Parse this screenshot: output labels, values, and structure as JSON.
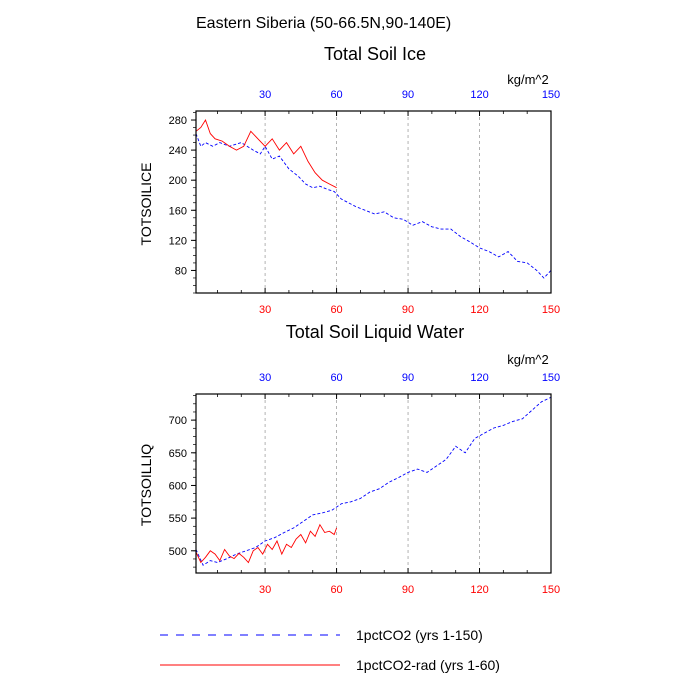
{
  "figure_title": "Eastern Siberia (50-66.5N,90-140E)",
  "colors": {
    "series_1": "#0000ff",
    "series_2": "#ff0000",
    "grid": "#a0a0a0",
    "frame": "#000000"
  },
  "legend": {
    "items": [
      {
        "label": "1pctCO2 (yrs 1-150)",
        "color": "#0000ff",
        "style": "dashed"
      },
      {
        "label": "1pctCO2-rad (yrs 1-60)",
        "color": "#ff0000",
        "style": "solid"
      }
    ]
  },
  "chart_data": [
    {
      "type": "line",
      "title": "Total Soil Ice",
      "ylabel": "TOTSOILICE",
      "units": "kg/m^2",
      "xlim": [
        1,
        150
      ],
      "ylim": [
        50,
        292
      ],
      "xticks": [
        30,
        60,
        90,
        120,
        150
      ],
      "yticks": [
        80,
        120,
        160,
        200,
        240,
        280
      ],
      "grid_x": true,
      "series": [
        {
          "name": "1pctCO2 (yrs 1-150)",
          "style": "dashed",
          "color": "#0000ff",
          "x": [
            1,
            3,
            5,
            8,
            11,
            15,
            20,
            25,
            28,
            30,
            33,
            36,
            40,
            44,
            47,
            50,
            53,
            56,
            59,
            62,
            65,
            68,
            72,
            76,
            80,
            84,
            88,
            92,
            96,
            100,
            104,
            108,
            112,
            116,
            120,
            124,
            128,
            132,
            136,
            140,
            144,
            147,
            150
          ],
          "values": [
            262,
            245,
            250,
            245,
            250,
            245,
            250,
            240,
            235,
            245,
            228,
            232,
            215,
            205,
            195,
            190,
            192,
            188,
            185,
            175,
            170,
            165,
            160,
            155,
            158,
            150,
            148,
            140,
            145,
            138,
            135,
            135,
            125,
            118,
            110,
            105,
            98,
            105,
            92,
            90,
            80,
            70,
            80
          ]
        },
        {
          "name": "1pctCO2-rad (yrs 1-60)",
          "style": "solid",
          "color": "#ff0000",
          "x": [
            1,
            3,
            5,
            7,
            9,
            12,
            15,
            18,
            21,
            24,
            27,
            30,
            33,
            36,
            39,
            42,
            45,
            48,
            51,
            54,
            57,
            60
          ],
          "values": [
            265,
            270,
            280,
            262,
            255,
            252,
            245,
            240,
            245,
            265,
            255,
            245,
            255,
            240,
            250,
            235,
            245,
            225,
            210,
            200,
            195,
            190
          ]
        }
      ]
    },
    {
      "type": "line",
      "title": "Total Soil Liquid Water",
      "ylabel": "TOTSOILLIQ",
      "units": "kg/m^2",
      "xlim": [
        1,
        150
      ],
      "ylim": [
        466,
        740
      ],
      "xticks": [
        30,
        60,
        90,
        120,
        150
      ],
      "yticks": [
        500,
        550,
        600,
        650,
        700
      ],
      "grid_x": true,
      "series": [
        {
          "name": "1pctCO2 (yrs 1-150)",
          "style": "dashed",
          "color": "#0000ff",
          "x": [
            1,
            4,
            7,
            10,
            14,
            18,
            22,
            26,
            30,
            34,
            38,
            42,
            46,
            50,
            54,
            58,
            62,
            66,
            70,
            74,
            78,
            82,
            86,
            90,
            94,
            98,
            102,
            106,
            110,
            114,
            118,
            122,
            126,
            130,
            134,
            138,
            142,
            146,
            150
          ],
          "values": [
            502,
            478,
            485,
            482,
            488,
            495,
            500,
            505,
            515,
            520,
            528,
            535,
            545,
            555,
            558,
            562,
            572,
            575,
            580,
            590,
            595,
            605,
            612,
            620,
            625,
            620,
            630,
            640,
            660,
            650,
            672,
            680,
            688,
            692,
            698,
            702,
            715,
            728,
            735
          ]
        },
        {
          "name": "1pctCO2-rad (yrs 1-60)",
          "style": "solid",
          "color": "#ff0000",
          "x": [
            1,
            3,
            5,
            7,
            9,
            11,
            13,
            15,
            17,
            19,
            21,
            23,
            25,
            27,
            29,
            31,
            33,
            35,
            37,
            39,
            41,
            43,
            45,
            47,
            49,
            51,
            53,
            55,
            57,
            59,
            60
          ],
          "values": [
            498,
            482,
            490,
            500,
            495,
            485,
            502,
            492,
            488,
            496,
            490,
            482,
            500,
            505,
            495,
            510,
            502,
            515,
            495,
            510,
            505,
            518,
            525,
            512,
            530,
            522,
            540,
            528,
            530,
            525,
            535
          ]
        }
      ]
    }
  ]
}
